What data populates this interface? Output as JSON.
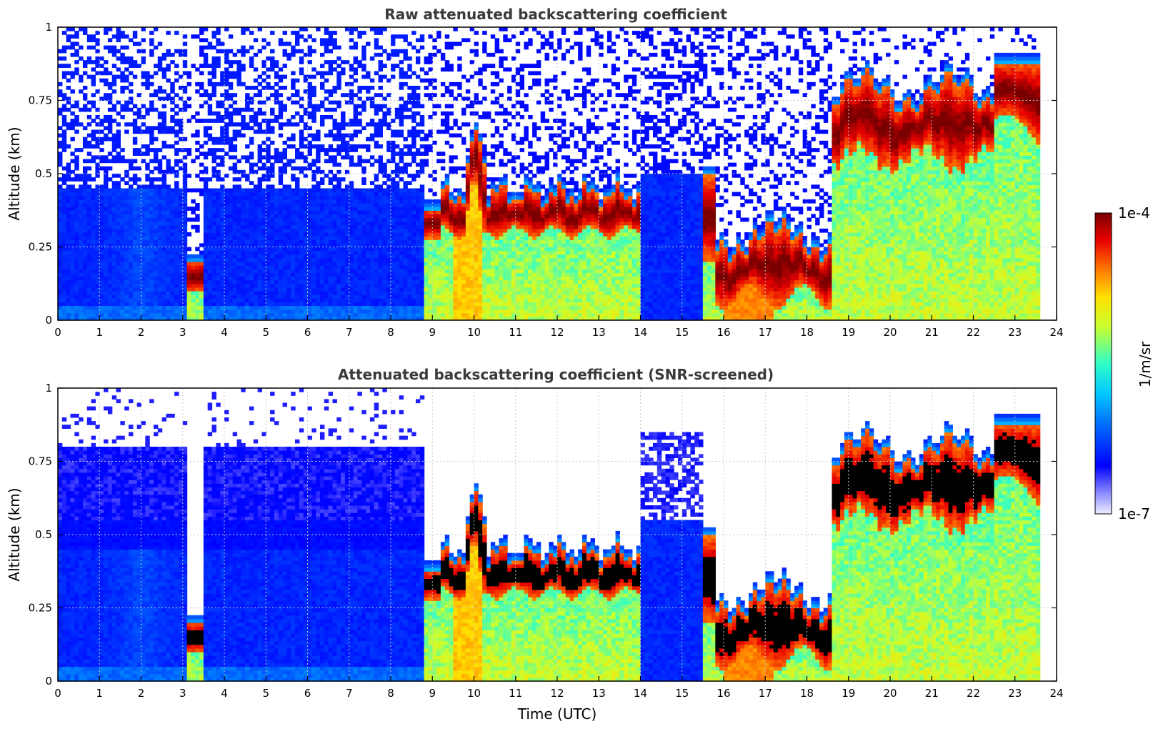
{
  "chart_data": [
    {
      "type": "heatmap",
      "title": "Raw attenuated backscattering coefficient",
      "ylabel": "Altitude (km)",
      "xlabel": "",
      "xlim": [
        0,
        24
      ],
      "ylim": [
        0,
        1
      ],
      "x_ticks": [
        "0",
        "1",
        "2",
        "3",
        "4",
        "5",
        "6",
        "7",
        "8",
        "9",
        "10",
        "11",
        "12",
        "13",
        "14",
        "15",
        "16",
        "17",
        "18",
        "19",
        "20",
        "21",
        "22",
        "23",
        "24"
      ],
      "y_ticks": [
        "0",
        "0.25",
        "0.5",
        "0.75",
        "1"
      ],
      "grid": true,
      "screened": false,
      "regimes": [
        {
          "t_start": 0,
          "t_end": 8.8,
          "description": "aerosol layer below 0.5 km, noisy signal above"
        },
        {
          "t_start": 8.8,
          "t_end": 14.0,
          "cloud_base_km": 0.35,
          "description": "cloud layer 0.3-0.45 km"
        },
        {
          "t_start": 14.0,
          "t_end": 15.5,
          "description": "clear / noise"
        },
        {
          "t_start": 15.5,
          "t_end": 18.5,
          "cloud_base_km": 0.2,
          "description": "low cloud 0.1-0.3 km"
        },
        {
          "t_start": 18.5,
          "t_end": 23.7,
          "cloud_base_km": 0.65,
          "description": "cloud layer 0.55-0.85 km"
        }
      ]
    },
    {
      "type": "heatmap",
      "title": "Attenuated backscattering coefficient (SNR-screened)",
      "ylabel": "Altitude (km)",
      "xlabel": "Time (UTC)",
      "xlim": [
        0,
        24
      ],
      "ylim": [
        0,
        1
      ],
      "x_ticks": [
        "0",
        "1",
        "2",
        "3",
        "4",
        "5",
        "6",
        "7",
        "8",
        "9",
        "10",
        "11",
        "12",
        "13",
        "14",
        "15",
        "16",
        "17",
        "18",
        "19",
        "20",
        "21",
        "22",
        "23",
        "24"
      ],
      "y_ticks": [
        "0",
        "0.25",
        "0.5",
        "0.75",
        "1"
      ],
      "grid": true,
      "screened": true
    }
  ],
  "colorbar": {
    "label": "1/m/sr",
    "min_label": "1e-7",
    "max_label": "1e-4",
    "scale": "log",
    "range": [
      1e-07,
      0.0001
    ],
    "colormap": "jet",
    "saturation_color": "#000000"
  }
}
